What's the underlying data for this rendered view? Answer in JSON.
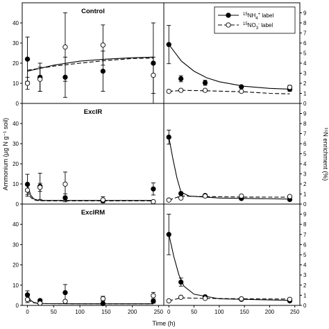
{
  "chart_data": {
    "type": "scatter",
    "x_axis": {
      "label": "Time (h)",
      "ticks": [
        0,
        50,
        100,
        150,
        200,
        250
      ],
      "range": [
        -10,
        260
      ]
    },
    "left_axis": {
      "label": "Ammonium (µg N g⁻¹ soil)",
      "range": [
        0,
        50
      ],
      "ticks": [
        0,
        10,
        20,
        30,
        40
      ]
    },
    "right_axis": {
      "label": "¹⁵N enrichment (%)",
      "range": [
        0,
        10
      ],
      "ticks": [
        0,
        1,
        2,
        3,
        4,
        5,
        6,
        7,
        8,
        9
      ]
    },
    "legend": {
      "position": "top-right of upper-right panel",
      "entries": [
        {
          "label_sup": "15",
          "label_main": "NH",
          "label_sub": "4",
          "label_sup2": "+",
          "label_tail": " label",
          "marker": "filled-circle",
          "line": "solid"
        },
        {
          "label_sup": "15",
          "label_main": "NO",
          "label_sub": "3",
          "label_sup2": "-",
          "label_tail": " label",
          "marker": "open-circle",
          "line": "dashed"
        }
      ]
    },
    "panels": [
      {
        "title": "Control",
        "row": 0,
        "side": "left",
        "series": [
          {
            "name": "15NH4+ label",
            "marker": "filled",
            "points": [
              [
                0,
                22,
                11
              ],
              [
                24,
                13,
                7
              ],
              [
                72,
                13,
                10
              ],
              [
                144,
                16,
                10
              ],
              [
                240,
                20,
                20
              ]
            ],
            "fit": [
              [
                0,
                16
              ],
              [
                50,
                19
              ],
              [
                100,
                21
              ],
              [
                150,
                22
              ],
              [
                200,
                22.7
              ],
              [
                240,
                23
              ]
            ]
          },
          {
            "name": "15NO3- label",
            "marker": "open",
            "points": [
              [
                0,
                10,
                3
              ],
              [
                24,
                12,
                6
              ],
              [
                72,
                28,
                17
              ],
              [
                144,
                29,
                10
              ],
              [
                240,
                14,
                9
              ]
            ],
            "fit": [
              [
                0,
                16.5
              ],
              [
                50,
                18.5
              ],
              [
                100,
                20
              ],
              [
                150,
                21.3
              ],
              [
                200,
                22.3
              ],
              [
                240,
                22.5
              ]
            ]
          }
        ]
      },
      {
        "title": "",
        "row": 0,
        "side": "right",
        "series": [
          {
            "name": "15NH4+ label",
            "marker": "filled",
            "points": [
              [
                0,
                5.85,
                1.9
              ],
              [
                24,
                2.45,
                0.3
              ],
              [
                72,
                2.05,
                0.25
              ],
              [
                144,
                1.65,
                0.1
              ],
              [
                240,
                1.4,
                0.2
              ]
            ],
            "fit": [
              [
                0,
                5.85
              ],
              [
                25,
                4.2
              ],
              [
                50,
                3.2
              ],
              [
                75,
                2.55
              ],
              [
                100,
                2.15
              ],
              [
                150,
                1.7
              ],
              [
                200,
                1.5
              ],
              [
                240,
                1.42
              ]
            ]
          },
          {
            "name": "15NO3- label",
            "marker": "open",
            "points": [
              [
                0,
                1.2,
                0.1
              ],
              [
                24,
                1.3,
                0.1
              ],
              [
                72,
                1.3,
                0.1
              ],
              [
                144,
                1.2,
                0.05
              ],
              [
                240,
                1.6,
                0.2
              ]
            ],
            "fit": [
              [
                0,
                1.2
              ],
              [
                30,
                1.3
              ],
              [
                80,
                1.25
              ],
              [
                150,
                1.15
              ],
              [
                200,
                1.0
              ],
              [
                240,
                0.95
              ]
            ]
          }
        ]
      },
      {
        "title": "ExcIR",
        "row": 1,
        "side": "left",
        "series": [
          {
            "name": "15NH4+ label",
            "marker": "filled",
            "points": [
              [
                0,
                9.8,
                5
              ],
              [
                24,
                8.8,
                6.5
              ],
              [
                72,
                3.1,
                2
              ],
              [
                144,
                1.6,
                0.5
              ],
              [
                240,
                7.5,
                3
              ]
            ],
            "fit": [
              [
                0,
                9.8
              ],
              [
                6,
                4.5
              ],
              [
                12,
                2.6
              ],
              [
                20,
                1.9
              ],
              [
                35,
                1.8
              ],
              [
                100,
                1.8
              ],
              [
                240,
                1.8
              ]
            ]
          },
          {
            "name": "15NO3- label",
            "marker": "open",
            "points": [
              [
                0,
                6.9,
                3
              ],
              [
                24,
                8.3,
                2
              ],
              [
                72,
                9.9,
                6
              ],
              [
                144,
                2.1,
                1.5
              ],
              [
                240,
                1.2,
                0.6
              ]
            ],
            "fit": [
              [
                0,
                6.9
              ],
              [
                6,
                3.4
              ],
              [
                12,
                2.1
              ],
              [
                20,
                1.7
              ],
              [
                35,
                1.6
              ],
              [
                100,
                1.6
              ],
              [
                240,
                1.6
              ]
            ]
          }
        ]
      },
      {
        "title": "",
        "row": 1,
        "side": "right",
        "series": [
          {
            "name": "15NH4+ label",
            "marker": "filled",
            "points": [
              [
                0,
                6.65,
                0.7
              ],
              [
                24,
                1.05,
                0.15
              ],
              [
                72,
                0.85,
                0.15
              ],
              [
                144,
                0.55,
                0.1
              ],
              [
                240,
                0.45,
                0.1
              ]
            ],
            "fit": [
              [
                0,
                6.65
              ],
              [
                8,
                4.5
              ],
              [
                16,
                2.6
              ],
              [
                24,
                1.2
              ],
              [
                40,
                0.8
              ],
              [
                100,
                0.6
              ],
              [
                240,
                0.5
              ]
            ]
          },
          {
            "name": "15NO3- label",
            "marker": "open",
            "points": [
              [
                0,
                0.4,
                0.05
              ],
              [
                24,
                0.6,
                0.1
              ],
              [
                72,
                0.8,
                0.1
              ],
              [
                144,
                0.8,
                0.1
              ],
              [
                240,
                0.75,
                0.05
              ]
            ],
            "fit": [
              [
                0,
                0.4
              ],
              [
                24,
                0.8
              ],
              [
                60,
                0.75
              ],
              [
                150,
                0.7
              ],
              [
                240,
                0.68
              ]
            ]
          }
        ]
      },
      {
        "title": "ExcIRM",
        "row": 2,
        "side": "left",
        "series": [
          {
            "name": "15NH4+ label",
            "marker": "filled",
            "points": [
              [
                0,
                5.2,
                2
              ],
              [
                24,
                2.4,
                0.7
              ],
              [
                72,
                6.3,
                4
              ],
              [
                144,
                0.9,
                0.1
              ],
              [
                240,
                2.1,
                1
              ]
            ],
            "fit": [
              [
                0,
                5.2
              ],
              [
                6,
                2.5
              ],
              [
                12,
                1.5
              ],
              [
                20,
                1.0
              ],
              [
                40,
                0.85
              ],
              [
                100,
                0.8
              ],
              [
                240,
                0.8
              ]
            ]
          },
          {
            "name": "15NO3- label",
            "marker": "open",
            "points": [
              [
                0,
                2.9,
                1.5
              ],
              [
                24,
                1.05,
                0.35
              ],
              [
                72,
                2.0,
                0.7
              ],
              [
                144,
                3.3,
                1.2
              ],
              [
                240,
                4.8,
                1.6
              ]
            ],
            "fit": [
              [
                0,
                2.9
              ],
              [
                6,
                1.9
              ],
              [
                12,
                1.3
              ],
              [
                20,
                1.0
              ],
              [
                40,
                0.85
              ],
              [
                100,
                0.8
              ],
              [
                240,
                0.8
              ]
            ]
          }
        ]
      },
      {
        "title": "",
        "row": 2,
        "side": "right",
        "series": [
          {
            "name": "15NH4+ label",
            "marker": "filled",
            "points": [
              [
                0,
                7.0,
                2.0
              ],
              [
                24,
                2.3,
                0.4
              ],
              [
                72,
                0.85,
                0.1
              ],
              [
                144,
                0.6,
                0.1
              ],
              [
                240,
                0.45,
                0.05
              ]
            ],
            "fit": [
              [
                0,
                7.0
              ],
              [
                10,
                4.8
              ],
              [
                20,
                3.0
              ],
              [
                30,
                1.9
              ],
              [
                50,
                1.1
              ],
              [
                100,
                0.65
              ],
              [
                240,
                0.5
              ]
            ]
          },
          {
            "name": "15NO3- label",
            "marker": "open",
            "points": [
              [
                0,
                0.45,
                0.05
              ],
              [
                24,
                0.8,
                0.1
              ],
              [
                72,
                0.7,
                0.1
              ],
              [
                144,
                0.65,
                0.05
              ],
              [
                240,
                0.6,
                0.05
              ]
            ],
            "fit": [
              [
                0,
                0.45
              ],
              [
                24,
                0.75
              ],
              [
                60,
                0.7
              ],
              [
                150,
                0.65
              ],
              [
                240,
                0.62
              ]
            ]
          }
        ]
      }
    ]
  }
}
